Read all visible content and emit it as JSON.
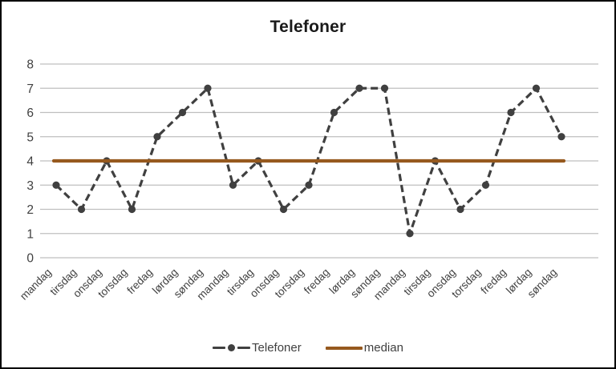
{
  "title": "Telefoner",
  "chart_data": {
    "type": "line",
    "title": "Telefoner",
    "categories": [
      "mandag",
      "tirsdag",
      "onsdag",
      "torsdag",
      "fredag",
      "lørdag",
      "søndag",
      "mandag",
      "tirsdag",
      "onsdag",
      "torsdag",
      "fredag",
      "lørdag",
      "søndag",
      "mandag",
      "tirsdag",
      "onsdag",
      "torsdag",
      "fredag",
      "lørdag",
      "søndag"
    ],
    "series": [
      {
        "name": "Telefoner",
        "values": [
          3,
          2,
          4,
          2,
          5,
          6,
          7,
          3,
          4,
          2,
          3,
          6,
          7,
          7,
          1,
          4,
          2,
          3,
          6,
          7,
          5
        ],
        "style": "dashed-with-markers"
      },
      {
        "name": "median",
        "value": 4,
        "style": "solid-constant"
      }
    ],
    "ylim": [
      0,
      8
    ],
    "yticks": [
      0,
      1,
      2,
      3,
      4,
      5,
      6,
      7,
      8
    ],
    "grid": "horizontal",
    "legend_position": "bottom",
    "colors": {
      "line": "#404040",
      "marker": "#404040",
      "median": "#96591E",
      "grid": "#BFBFBF",
      "tick_text": "#404040",
      "title_text": "#1A1A1A"
    }
  }
}
